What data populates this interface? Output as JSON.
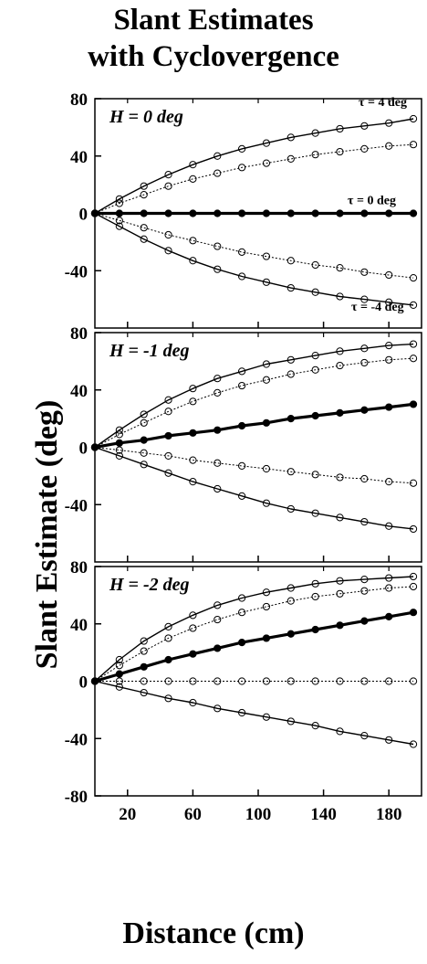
{
  "title_lines": [
    "Slant Estimates",
    "with Cyclovergence"
  ],
  "chart_data": {
    "type": "line",
    "xlabel": "Distance (cm)",
    "ylabel": "Slant Estimate (deg)",
    "xlim": [
      0,
      200
    ],
    "x_ticks": [
      20,
      60,
      100,
      140,
      180
    ],
    "x": [
      0,
      15,
      30,
      45,
      60,
      75,
      90,
      105,
      120,
      135,
      150,
      165,
      180,
      195
    ],
    "panels": [
      {
        "label": "H = 0 deg",
        "ylim": [
          -80,
          80
        ],
        "y_ticks": [
          80,
          40,
          0,
          -40
        ],
        "annotations": [
          {
            "text": "τ = 4 deg",
            "series": 0
          },
          {
            "text": "τ = 0 deg",
            "series": 2
          },
          {
            "text": "τ = -4 deg",
            "series": 4
          }
        ],
        "series": [
          {
            "style": "solid",
            "values": [
              0,
              10,
              19,
              27,
              34,
              40,
              45,
              49,
              53,
              56,
              59,
              61,
              63,
              66
            ]
          },
          {
            "style": "dotted",
            "values": [
              0,
              7,
              13,
              19,
              24,
              28,
              32,
              35,
              38,
              41,
              43,
              45,
              47,
              48
            ]
          },
          {
            "style": "thick",
            "values": [
              0,
              0,
              0,
              0,
              0,
              0,
              0,
              0,
              0,
              0,
              0,
              0,
              0,
              0
            ]
          },
          {
            "style": "dotted",
            "values": [
              0,
              -5,
              -10,
              -15,
              -19,
              -23,
              -27,
              -30,
              -33,
              -36,
              -38,
              -41,
              -43,
              -45
            ]
          },
          {
            "style": "solid",
            "values": [
              0,
              -9,
              -18,
              -26,
              -33,
              -39,
              -44,
              -48,
              -52,
              -55,
              -58,
              -60,
              -62,
              -64
            ]
          }
        ]
      },
      {
        "label": "H = -1 deg",
        "ylim": [
          -80,
          80
        ],
        "y_ticks": [
          80,
          40,
          0,
          -40
        ],
        "annotations": [],
        "series": [
          {
            "style": "solid",
            "values": [
              0,
              12,
              23,
              33,
              41,
              48,
              53,
              58,
              61,
              64,
              67,
              69,
              71,
              72
            ]
          },
          {
            "style": "dotted",
            "values": [
              0,
              9,
              17,
              25,
              32,
              38,
              43,
              47,
              51,
              54,
              57,
              59,
              61,
              62
            ]
          },
          {
            "style": "thick",
            "values": [
              0,
              3,
              5,
              8,
              10,
              12,
              15,
              17,
              20,
              22,
              24,
              26,
              28,
              30
            ]
          },
          {
            "style": "dotted",
            "values": [
              0,
              -2,
              -4,
              -6,
              -9,
              -11,
              -13,
              -15,
              -17,
              -19,
              -21,
              -22,
              -24,
              -25
            ]
          },
          {
            "style": "solid",
            "values": [
              0,
              -6,
              -12,
              -18,
              -24,
              -29,
              -34,
              -39,
              -43,
              -46,
              -49,
              -52,
              -55,
              -57
            ]
          }
        ]
      },
      {
        "label": "H = -2 deg",
        "ylim": [
          -80,
          80
        ],
        "y_ticks": [
          80,
          40,
          0,
          -40,
          -80
        ],
        "annotations": [],
        "series": [
          {
            "style": "solid",
            "values": [
              0,
              15,
              28,
              38,
              46,
              53,
              58,
              62,
              65,
              68,
              70,
              71,
              72,
              73
            ]
          },
          {
            "style": "dotted",
            "values": [
              0,
              11,
              21,
              30,
              37,
              43,
              48,
              52,
              56,
              59,
              61,
              63,
              65,
              66
            ]
          },
          {
            "style": "thick",
            "values": [
              0,
              5,
              10,
              15,
              19,
              23,
              27,
              30,
              33,
              36,
              39,
              42,
              45,
              48
            ]
          },
          {
            "style": "dotted",
            "values": [
              0,
              0,
              0,
              0,
              0,
              0,
              0,
              0,
              0,
              0,
              0,
              0,
              0,
              0
            ]
          },
          {
            "style": "solid",
            "values": [
              0,
              -4,
              -8,
              -12,
              -15,
              -19,
              -22,
              -25,
              -28,
              -31,
              -35,
              -38,
              -41,
              -44
            ]
          }
        ]
      }
    ]
  }
}
